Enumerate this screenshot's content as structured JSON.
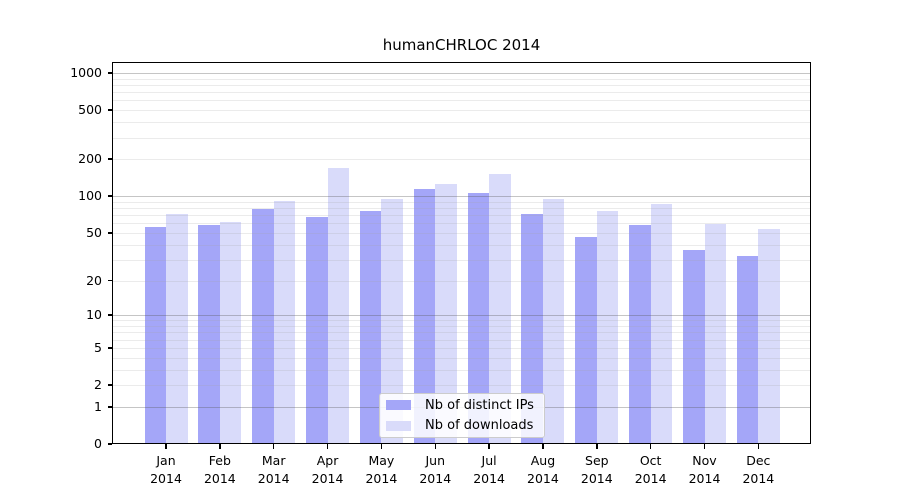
{
  "figure_title": "humanCHRLOC 2014",
  "chart_data": {
    "type": "bar",
    "title": "humanCHRLOC 2014",
    "categories": [
      "Jan 2014",
      "Feb 2014",
      "Mar 2014",
      "Apr 2014",
      "May 2014",
      "Jun 2014",
      "Jul 2014",
      "Aug 2014",
      "Sep 2014",
      "Oct 2014",
      "Nov 2014",
      "Dec 2014"
    ],
    "month_labels": [
      "Jan",
      "Feb",
      "Mar",
      "Apr",
      "May",
      "Jun",
      "Jul",
      "Aug",
      "Sep",
      "Oct",
      "Nov",
      "Dec"
    ],
    "year_label": "2014",
    "series": [
      {
        "name": "Nb of distinct IPs",
        "color": "#a4a6f8",
        "values": [
          56,
          58,
          79,
          68,
          76,
          114,
          106,
          71,
          46,
          58,
          36,
          32
        ]
      },
      {
        "name": "Nb of downloads",
        "color": "#d9dbfa",
        "values": [
          72,
          62,
          92,
          170,
          94,
          126,
          152,
          94,
          76,
          86,
          59,
          54
        ]
      }
    ],
    "xlabel": "",
    "ylabel": "",
    "yscale": "log1p",
    "ylim": [
      0,
      1230
    ],
    "yticks": [
      0,
      1,
      2,
      5,
      10,
      20,
      50,
      100,
      200,
      500,
      1000
    ],
    "grid": "both",
    "grid_major_at": [
      1,
      10,
      100,
      1000
    ],
    "legend_position": "lower center",
    "colors": {
      "bar_dark": "#a4a6f8",
      "bar_light": "#d9dbfa",
      "axis": "#000000",
      "grid_major": "#bdbdbd",
      "grid_minor": "#ececec",
      "legend_border": "#cccccc"
    }
  }
}
